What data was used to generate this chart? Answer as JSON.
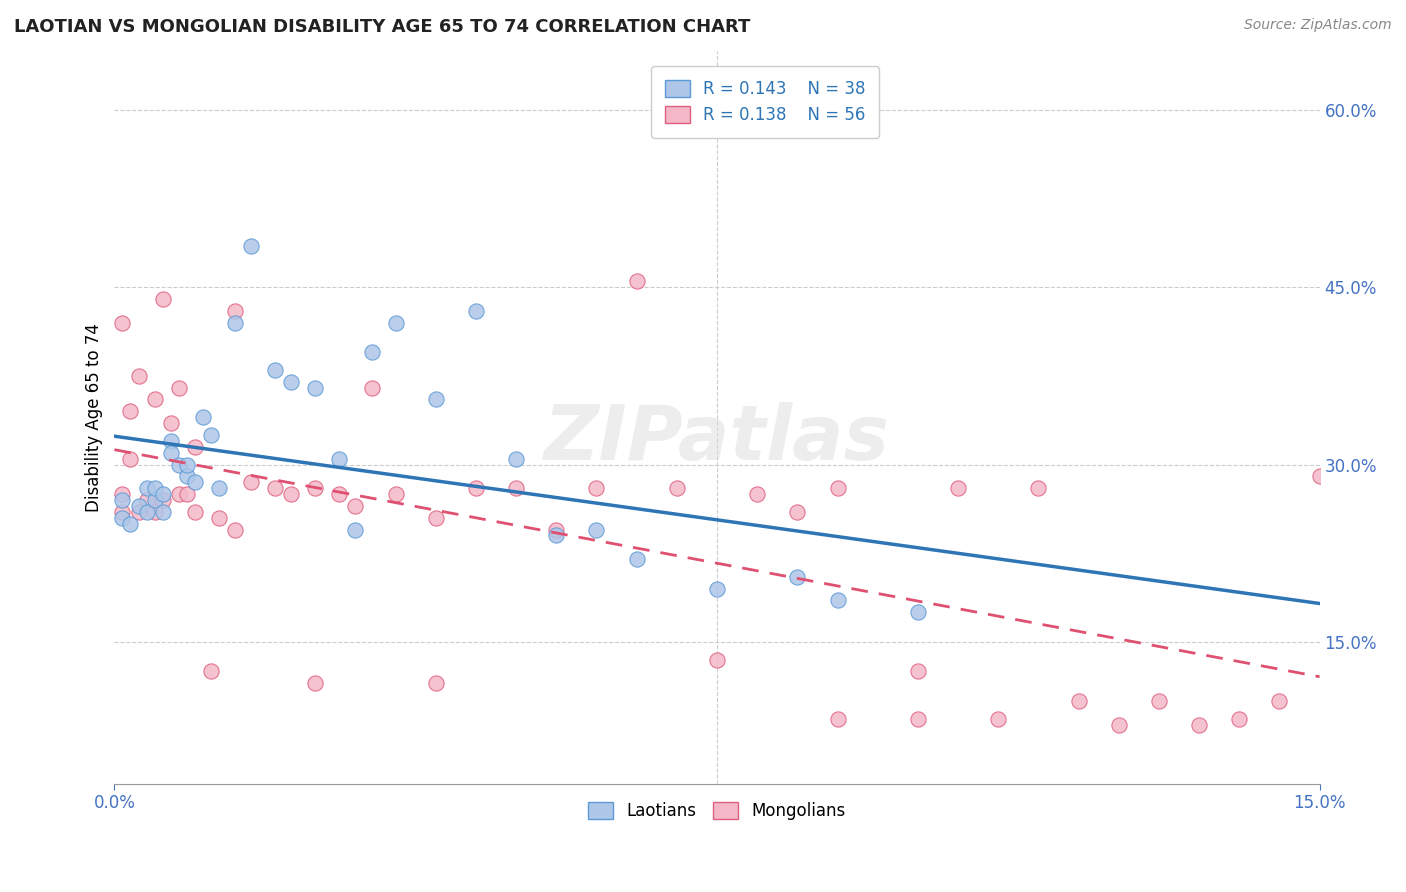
{
  "title": "LAOTIAN VS MONGOLIAN DISABILITY AGE 65 TO 74 CORRELATION CHART",
  "source_text": "Source: ZipAtlas.com",
  "ylabel_label": "Disability Age 65 to 74",
  "xmin": 0.0,
  "xmax": 0.15,
  "ymin": 0.03,
  "ymax": 0.65,
  "yticks": [
    0.15,
    0.3,
    0.45,
    0.6
  ],
  "xticks": [
    0.0,
    0.15
  ],
  "laotian_color": "#aec6e8",
  "laotian_edge_color": "#5b9bd5",
  "mongolian_color": "#f4b8c8",
  "mongolian_edge_color": "#e06080",
  "laotian_line_color": "#2e75b6",
  "mongolian_line_color": "#e05070",
  "legend_box_color": "#aec6e8",
  "legend_box_color2": "#f4b8c8",
  "legend_text_color": "#333333",
  "legend_value_color": "#2e75b6",
  "legend_R_laotian": "R = 0.143",
  "legend_N_laotian": "N = 38",
  "legend_R_mongolian": "R = 0.138",
  "legend_N_mongolian": "N = 56",
  "watermark": "ZIPatlas",
  "grid_color": "#cccccc",
  "tick_label_color": "#4472c4",
  "laotian_x": [
    0.001,
    0.001,
    0.002,
    0.003,
    0.004,
    0.004,
    0.005,
    0.005,
    0.006,
    0.006,
    0.007,
    0.007,
    0.008,
    0.009,
    0.009,
    0.01,
    0.011,
    0.012,
    0.013,
    0.015,
    0.017,
    0.02,
    0.022,
    0.025,
    0.028,
    0.03,
    0.032,
    0.035,
    0.04,
    0.045,
    0.05,
    0.055,
    0.06,
    0.065,
    0.075,
    0.085,
    0.09,
    0.1
  ],
  "laotian_y": [
    0.27,
    0.255,
    0.25,
    0.265,
    0.26,
    0.28,
    0.27,
    0.28,
    0.26,
    0.275,
    0.32,
    0.31,
    0.3,
    0.29,
    0.3,
    0.285,
    0.34,
    0.325,
    0.28,
    0.42,
    0.485,
    0.38,
    0.37,
    0.365,
    0.305,
    0.245,
    0.395,
    0.42,
    0.355,
    0.43,
    0.305,
    0.24,
    0.245,
    0.22,
    0.195,
    0.205,
    0.185,
    0.175
  ],
  "mongolian_x": [
    0.001,
    0.001,
    0.001,
    0.002,
    0.002,
    0.003,
    0.003,
    0.004,
    0.005,
    0.005,
    0.006,
    0.006,
    0.007,
    0.008,
    0.008,
    0.009,
    0.01,
    0.01,
    0.012,
    0.013,
    0.015,
    0.015,
    0.017,
    0.02,
    0.022,
    0.025,
    0.025,
    0.028,
    0.03,
    0.032,
    0.035,
    0.04,
    0.04,
    0.045,
    0.05,
    0.055,
    0.06,
    0.065,
    0.07,
    0.075,
    0.08,
    0.085,
    0.09,
    0.09,
    0.1,
    0.1,
    0.105,
    0.11,
    0.115,
    0.12,
    0.125,
    0.13,
    0.135,
    0.14,
    0.145,
    0.15
  ],
  "mongolian_y": [
    0.26,
    0.275,
    0.42,
    0.305,
    0.345,
    0.26,
    0.375,
    0.27,
    0.26,
    0.355,
    0.27,
    0.44,
    0.335,
    0.275,
    0.365,
    0.275,
    0.315,
    0.26,
    0.125,
    0.255,
    0.43,
    0.245,
    0.285,
    0.28,
    0.275,
    0.115,
    0.28,
    0.275,
    0.265,
    0.365,
    0.275,
    0.255,
    0.115,
    0.28,
    0.28,
    0.245,
    0.28,
    0.455,
    0.28,
    0.135,
    0.275,
    0.26,
    0.085,
    0.28,
    0.125,
    0.085,
    0.28,
    0.085,
    0.28,
    0.1,
    0.08,
    0.1,
    0.08,
    0.085,
    0.1,
    0.29
  ]
}
